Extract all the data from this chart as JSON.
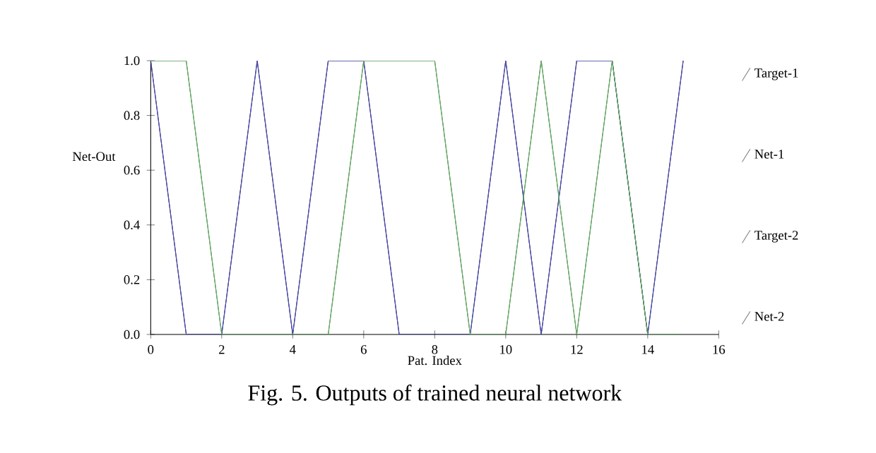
{
  "chart_data": {
    "type": "line",
    "title": "Fig. 5. Outputs of trained neural network",
    "xlabel": "Pat. Index",
    "ylabel": "Net-Out",
    "x": [
      0,
      1,
      2,
      3,
      4,
      5,
      6,
      7,
      8,
      9,
      10,
      11,
      12,
      13,
      14,
      15
    ],
    "series": [
      {
        "name": "Target-1",
        "color": "#1c1c78",
        "values": [
          1,
          0,
          0,
          1,
          0,
          1,
          1,
          0,
          0,
          0,
          1,
          0,
          1,
          1,
          0,
          1
        ]
      },
      {
        "name": "Net-1",
        "color": "#4a4aa8",
        "values": [
          1,
          0,
          0,
          1,
          0,
          1,
          1,
          0,
          0,
          0,
          1,
          0,
          1,
          1,
          0,
          1
        ]
      },
      {
        "name": "Target-2",
        "color": "#2e7d2e",
        "values": [
          1,
          1,
          0,
          0,
          0,
          0,
          1,
          1,
          1,
          0,
          0,
          1,
          0,
          1,
          0,
          0
        ]
      },
      {
        "name": "Net-2",
        "color": "#6aaa6a",
        "values": [
          1,
          1,
          0,
          0,
          0,
          0,
          1,
          1,
          1,
          0,
          0,
          1,
          0,
          1,
          0,
          0
        ]
      }
    ],
    "xlim": [
      0,
      16
    ],
    "ylim": [
      0,
      1
    ],
    "xticks": [
      0,
      2,
      4,
      6,
      8,
      10,
      12,
      14,
      16
    ],
    "yticks": [
      {
        "value": 0,
        "label": "0.0"
      },
      {
        "value": 0.2,
        "label": "0.2"
      },
      {
        "value": 0.4,
        "label": "0.4"
      },
      {
        "value": 0.6,
        "label": "0.6"
      },
      {
        "value": 0.8,
        "label": "0.8"
      },
      {
        "value": 1,
        "label": "1.0"
      }
    ],
    "legend": "right",
    "grid": false,
    "marker": "none",
    "line_style": "solid"
  }
}
